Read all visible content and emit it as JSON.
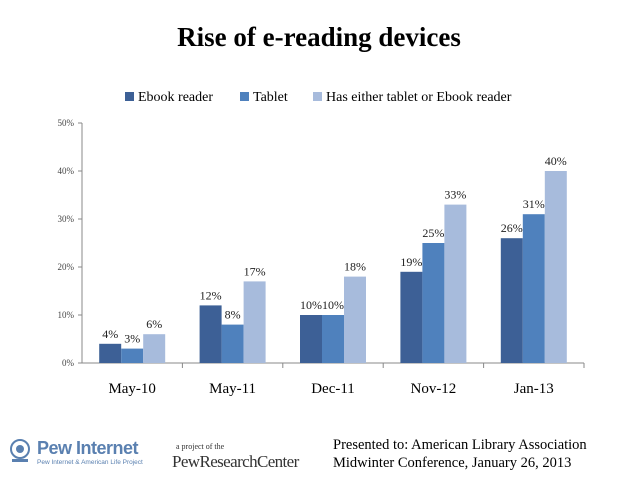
{
  "chart_data": {
    "type": "bar",
    "title": "Rise of e-reading devices",
    "categories": [
      "May-10",
      "May-11",
      "Dec-11",
      "Nov-12",
      "Jan-13"
    ],
    "series": [
      {
        "name": "Ebook reader",
        "color": "#3d6096",
        "values": [
          4,
          12,
          10,
          19,
          26
        ],
        "labels": [
          "4%",
          "12%",
          "10%",
          "19%",
          "26%"
        ]
      },
      {
        "name": "Tablet",
        "color": "#4f81bd",
        "values": [
          3,
          8,
          10,
          25,
          31
        ],
        "labels": [
          "3%",
          "8%",
          "10%",
          "25%",
          "31%"
        ]
      },
      {
        "name": "Has either tablet or Ebook reader",
        "color": "#a7bbdc",
        "values": [
          6,
          17,
          18,
          33,
          40
        ],
        "labels": [
          "6%",
          "17%",
          "18%",
          "33%",
          "40%"
        ]
      }
    ],
    "ylim": [
      0,
      50
    ],
    "yticks": [
      0,
      10,
      20,
      30,
      40,
      50
    ],
    "ytick_labels": [
      "0%",
      "10%",
      "20%",
      "30%",
      "40%",
      "50%"
    ],
    "legend_position": "top",
    "xlabel": "",
    "ylabel": ""
  },
  "footer": {
    "pew_internet": "Pew Internet",
    "pew_internet_sub": "Pew Internet & American Life Project",
    "project_of": "a project of the",
    "prc": "PewResearchCenter",
    "presented_line1": "Presented to: American Library Association",
    "presented_line2": "Midwinter Conference, January 26, 2013",
    "logo_color": "#5a80b0"
  }
}
